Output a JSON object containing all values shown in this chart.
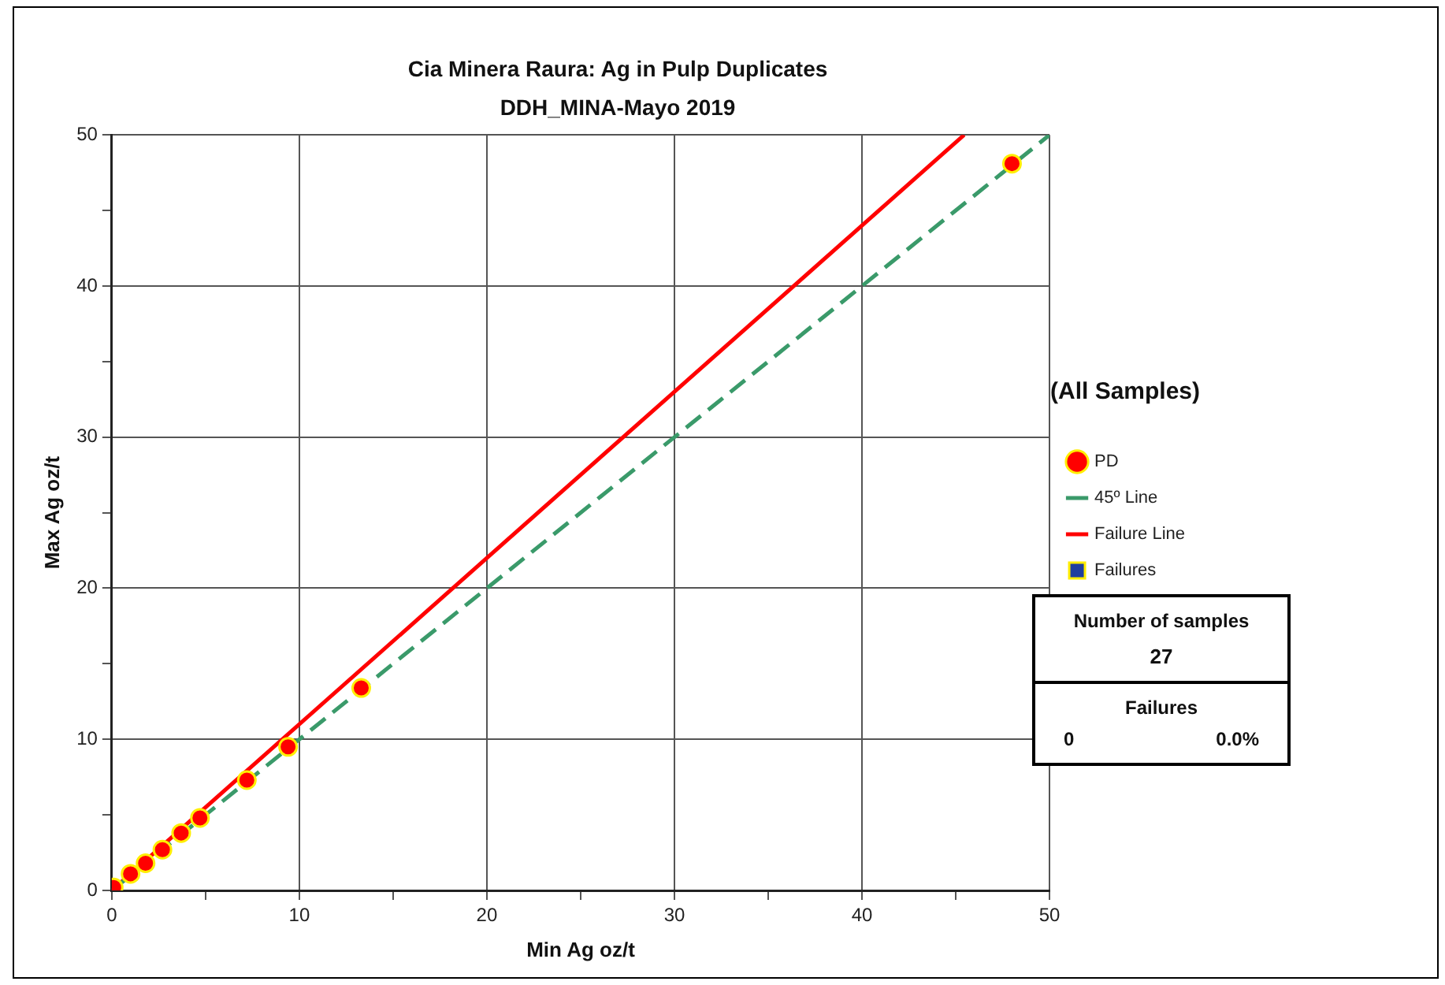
{
  "chart_data": {
    "type": "scatter",
    "title": "Cia Minera Raura: Ag in Pulp Duplicates",
    "subtitle": "DDH_MINA-Mayo 2019",
    "xlabel": "Min Ag oz/t",
    "ylabel": "Max Ag oz/t",
    "legend_title": "(All Samples)",
    "xlim": [
      0,
      50
    ],
    "ylim": [
      0,
      50
    ],
    "xticks": [
      0,
      {
        "value": 5,
        "label": null
      },
      10,
      {
        "value": 15,
        "label": null
      },
      20,
      {
        "value": 25,
        "label": null
      },
      30,
      {
        "value": 35,
        "label": null
      },
      40,
      {
        "value": 45,
        "label": null
      },
      50
    ],
    "yticks": [
      0,
      {
        "value": 5,
        "label": null
      },
      10,
      {
        "value": 15,
        "label": null
      },
      20,
      {
        "value": 25,
        "label": null
      },
      30,
      {
        "value": 35,
        "label": null
      },
      40,
      {
        "value": 45,
        "label": null
      },
      50
    ],
    "grid": true,
    "legend": "right",
    "series": [
      {
        "name": "PD",
        "marker": "circle",
        "color": "#ff0000",
        "x": [
          0.1,
          1.0,
          1.8,
          2.7,
          3.7,
          4.7,
          7.2,
          9.4,
          13.3,
          48.0
        ],
        "values": [
          0.2,
          1.1,
          1.8,
          2.7,
          3.8,
          4.8,
          7.3,
          9.5,
          13.4,
          48.1
        ]
      },
      {
        "name": "45º Line",
        "type": "line",
        "marker": "none",
        "line_style": "dashed",
        "color": "#3a9a6a",
        "x": [
          0,
          50
        ],
        "values": [
          0,
          50
        ]
      },
      {
        "name": "Failure Line",
        "type": "line",
        "marker": "none",
        "line_style": "solid",
        "color": "#ff0000",
        "x": [
          0,
          45.45
        ],
        "values": [
          0,
          50
        ]
      },
      {
        "name": "Failures",
        "marker": "square",
        "color": "#1f3f9f"
      }
    ],
    "annotations": [
      "Number of samples",
      "27",
      "Failures",
      "0",
      "0.0%"
    ]
  }
}
